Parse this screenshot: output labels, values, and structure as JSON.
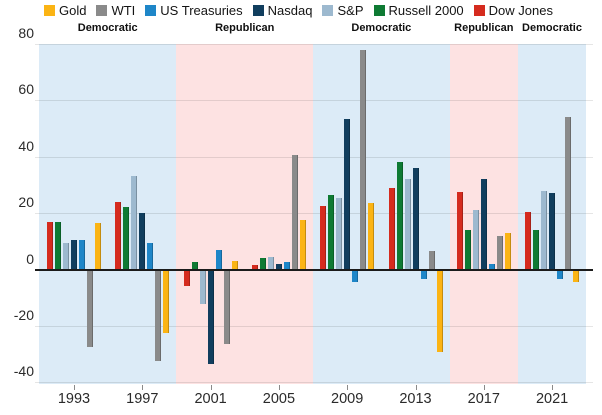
{
  "legend": {
    "items": [
      {
        "label": "Gold",
        "color": "#FBB414",
        "icon": "legend-swatch"
      },
      {
        "label": "WTI",
        "color": "#8A8A8A",
        "icon": "legend-swatch"
      },
      {
        "label": "US Treasuries",
        "color": "#1E86C8",
        "icon": "legend-swatch"
      },
      {
        "label": "Nasdaq",
        "color": "#113E5E",
        "icon": "legend-swatch"
      },
      {
        "label": "S&P",
        "color": "#9DB9CF",
        "icon": "legend-swatch"
      },
      {
        "label": "Russell 2000",
        "color": "#0E7A33",
        "icon": "legend-swatch"
      },
      {
        "label": "Dow Jones",
        "color": "#D52B1E",
        "icon": "legend-swatch"
      }
    ]
  },
  "chart_data": {
    "type": "bar",
    "categories": [
      "1993",
      "1997",
      "2001",
      "2005",
      "2009",
      "2013",
      "2017",
      "2021"
    ],
    "series": [
      {
        "name": "Dow Jones",
        "color": "#D52B1E",
        "values": [
          17,
          24,
          -5.5,
          1.5,
          22.5,
          29,
          27.5,
          20.5
        ]
      },
      {
        "name": "Russell 2000",
        "color": "#0E7A33",
        "values": [
          17,
          22,
          2.5,
          4,
          26.5,
          38,
          14,
          14
        ]
      },
      {
        "name": "S&P",
        "color": "#9DB9CF",
        "values": [
          9.5,
          33,
          -12,
          4.5,
          25.5,
          32,
          21,
          28
        ]
      },
      {
        "name": "Nasdaq",
        "color": "#113E5E",
        "values": [
          10.5,
          20,
          -33,
          2,
          53.5,
          36,
          32,
          27
        ]
      },
      {
        "name": "US Treasuries",
        "color": "#1E86C8",
        "values": [
          10.5,
          9.5,
          7,
          2.5,
          -4,
          -3,
          2,
          -3
        ]
      },
      {
        "name": "WTI",
        "color": "#8A8A8A",
        "values": [
          -27,
          -32,
          -26,
          40.5,
          78,
          6.5,
          12,
          54
        ]
      },
      {
        "name": "Gold",
        "color": "#FBB414",
        "values": [
          16.5,
          -22,
          3,
          17.5,
          23.5,
          -29,
          13,
          -4
        ]
      }
    ],
    "party_bands": [
      {
        "label": "Democratic",
        "start_index": 0,
        "end_index": 1
      },
      {
        "label": "Republican",
        "start_index": 2,
        "end_index": 3
      },
      {
        "label": "Democratic",
        "start_index": 4,
        "end_index": 5
      },
      {
        "label": "Republican",
        "start_index": 6,
        "end_index": 6
      },
      {
        "label": "Democratic",
        "start_index": 7,
        "end_index": 7
      }
    ],
    "band_colors": {
      "Democratic": "#DCEBF7",
      "Republican": "#FDE2E2"
    },
    "yticks": [
      80,
      60,
      40,
      20,
      0,
      -20,
      -40
    ],
    "ylim": [
      -40,
      80
    ],
    "grid": true,
    "legend_position": "top",
    "title": "",
    "xlabel": "",
    "ylabel": ""
  }
}
